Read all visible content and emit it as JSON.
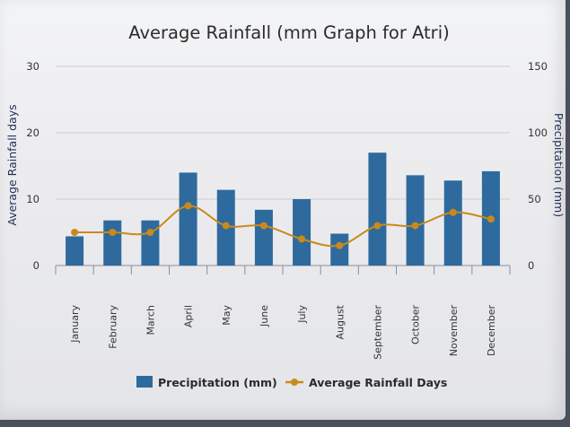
{
  "chart_data": {
    "type": "bar",
    "title": "Average Rainfall (mm Graph for Atri)",
    "categories": [
      "January",
      "February",
      "March",
      "April",
      "May",
      "June",
      "July",
      "August",
      "September",
      "October",
      "November",
      "December"
    ],
    "series": [
      {
        "name": "Precipitation (mm)",
        "type": "bar",
        "axis": "right",
        "color": "#2e6a9e",
        "values": [
          22,
          34,
          34,
          70,
          57,
          42,
          50,
          24,
          85,
          68,
          64,
          71
        ]
      },
      {
        "name": "Average Rainfall Days",
        "type": "line",
        "axis": "left",
        "color": "#c98a1a",
        "values": [
          5,
          5,
          5,
          9,
          6,
          6,
          4,
          3,
          6,
          6,
          8,
          7
        ]
      }
    ],
    "y_left": {
      "label": "Average Rainfall days",
      "ylim": [
        0,
        30
      ],
      "ticks": [
        "0",
        "10",
        "20",
        "30"
      ]
    },
    "y_right": {
      "label": "Precipitation (mm)",
      "ylim": [
        0,
        150
      ],
      "ticks": [
        "0",
        "50",
        "100",
        "150"
      ]
    },
    "grid": true,
    "legend": "bottom"
  }
}
